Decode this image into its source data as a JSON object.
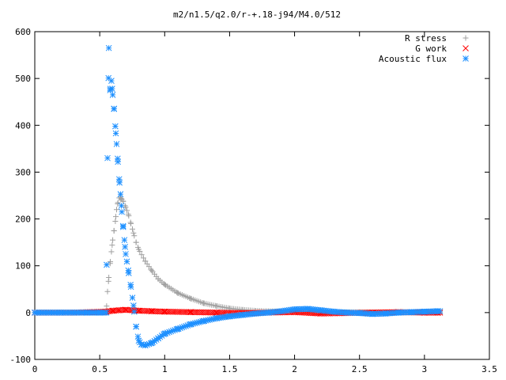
{
  "chart_data": {
    "type": "scatter",
    "title": "m2/n1.5/q2.0/r-+.18-j94/M4.0/512",
    "xlabel": "",
    "ylabel": "",
    "xlim": [
      0,
      3.5
    ],
    "ylim": [
      -100,
      600
    ],
    "xticks": [
      0,
      0.5,
      1,
      1.5,
      2,
      2.5,
      3,
      3.5
    ],
    "xtick_labels": [
      "0",
      "0.5",
      "1",
      "1.5",
      "2",
      "2.5",
      "3",
      "3.5"
    ],
    "yticks": [
      -100,
      0,
      100,
      200,
      300,
      400,
      500,
      600
    ],
    "ytick_labels": [
      "-100",
      "0",
      "100",
      "200",
      "300",
      "400",
      "500",
      "600"
    ],
    "grid": false,
    "legend_position": "top-right",
    "series": [
      {
        "name": "R stress",
        "marker": "plus",
        "color": "#a0a0a0",
        "x": [
          0.0,
          0.2,
          0.4,
          0.5,
          0.55,
          0.56,
          0.57,
          0.58,
          0.59,
          0.6,
          0.61,
          0.62,
          0.63,
          0.64,
          0.65,
          0.66,
          0.67,
          0.68,
          0.7,
          0.72,
          0.74,
          0.76,
          0.78,
          0.8,
          0.85,
          0.9,
          0.95,
          1.0,
          1.1,
          1.2,
          1.3,
          1.4,
          1.5,
          1.6,
          1.7,
          1.8,
          2.0,
          2.2,
          2.5,
          2.8,
          3.1
        ],
        "y": [
          0,
          0,
          0,
          0,
          0,
          45,
          75,
          105,
          130,
          155,
          175,
          195,
          220,
          235,
          245,
          245,
          242,
          238,
          225,
          210,
          190,
          170,
          150,
          135,
          110,
          90,
          72,
          60,
          42,
          30,
          20,
          14,
          9,
          6,
          4,
          3,
          2,
          1,
          1,
          0,
          0
        ]
      },
      {
        "name": "G work",
        "marker": "cross",
        "color": "#ff0000",
        "x": [
          0.0,
          0.3,
          0.55,
          0.6,
          0.65,
          0.7,
          0.75,
          0.8,
          0.9,
          1.0,
          1.2,
          1.4,
          1.6,
          1.8,
          2.0,
          2.2,
          2.4,
          2.6,
          2.8,
          3.0,
          3.1
        ],
        "y": [
          0,
          0,
          2,
          4,
          5,
          6,
          5,
          4,
          3,
          2,
          1,
          0,
          -1,
          0,
          1,
          -2,
          -1,
          0,
          1,
          0,
          0
        ]
      },
      {
        "name": "Acoustic flux",
        "marker": "star",
        "color": "#1e90ff",
        "x": [
          0.0,
          0.2,
          0.4,
          0.5,
          0.55,
          0.56,
          0.57,
          0.58,
          0.59,
          0.6,
          0.61,
          0.62,
          0.63,
          0.64,
          0.65,
          0.66,
          0.67,
          0.68,
          0.69,
          0.7,
          0.72,
          0.74,
          0.76,
          0.78,
          0.8,
          0.82,
          0.85,
          0.9,
          0.95,
          1.0,
          1.1,
          1.2,
          1.3,
          1.4,
          1.5,
          1.6,
          1.7,
          1.8,
          1.9,
          2.0,
          2.1,
          2.2,
          2.3,
          2.4,
          2.5,
          2.6,
          2.7,
          2.8,
          2.9,
          3.0,
          3.1
        ],
        "y": [
          0,
          0,
          0,
          0,
          0,
          330,
          565,
          475,
          495,
          465,
          435,
          398,
          360,
          322,
          285,
          253,
          215,
          185,
          155,
          125,
          90,
          55,
          15,
          -30,
          -60,
          -68,
          -70,
          -65,
          -55,
          -45,
          -35,
          -25,
          -18,
          -12,
          -8,
          -5,
          -2,
          0,
          3,
          7,
          8,
          5,
          2,
          0,
          -1,
          -3,
          -2,
          0,
          1,
          2,
          3
        ]
      }
    ]
  }
}
